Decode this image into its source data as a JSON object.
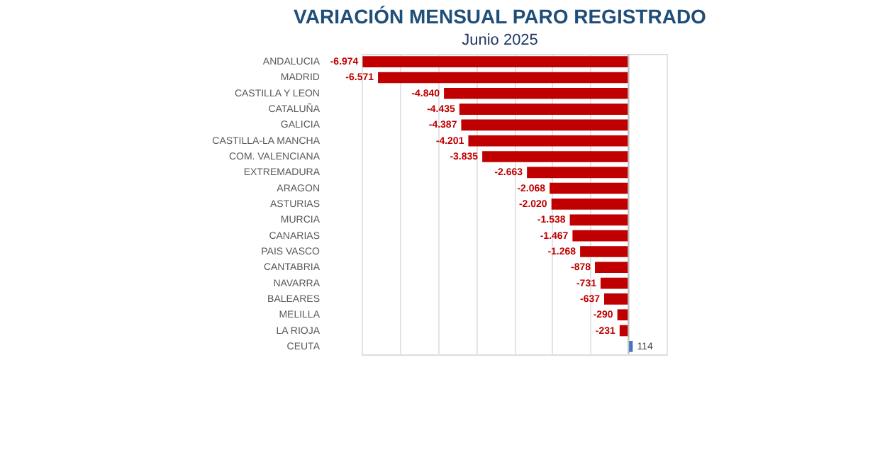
{
  "chart_data": {
    "type": "bar",
    "orientation": "horizontal",
    "title": "VARIACIÓN MENSUAL PARO REGISTRADO",
    "subtitle": "Junio 2025",
    "categories": [
      "ANDALUCIA",
      "MADRID",
      "CASTILLA Y LEON",
      "CATALUÑA",
      "GALICIA",
      "CASTILLA-LA MANCHA",
      "COM. VALENCIANA",
      "EXTREMADURA",
      "ARAGON",
      "ASTURIAS",
      "MURCIA",
      "CANARIAS",
      "PAIS VASCO",
      "CANTABRIA",
      "NAVARRA",
      "BALEARES",
      "MELILLA",
      "LA RIOJA",
      "CEUTA"
    ],
    "values": [
      -6974,
      -6571,
      -4840,
      -4435,
      -4387,
      -4201,
      -3835,
      -2663,
      -2068,
      -2020,
      -1538,
      -1467,
      -1268,
      -878,
      -731,
      -637,
      -290,
      -231,
      114
    ],
    "value_labels": [
      "-6.974",
      "-6.571",
      "-4.840",
      "-4.435",
      "-4.387",
      "-4.201",
      "-3.835",
      "-2.663",
      "-2.068",
      "-2.020",
      "-1.538",
      "-1.467",
      "-1.268",
      "-878",
      "-731",
      "-637",
      "-290",
      "-231",
      "114"
    ],
    "colors": [
      "#c00000",
      "#c00000",
      "#c00000",
      "#c00000",
      "#c00000",
      "#c00000",
      "#c00000",
      "#c00000",
      "#c00000",
      "#c00000",
      "#c00000",
      "#c00000",
      "#c00000",
      "#c00000",
      "#c00000",
      "#c00000",
      "#c00000",
      "#c00000",
      "#4472c4"
    ],
    "grid": "x",
    "tick_labels": "y"
  }
}
